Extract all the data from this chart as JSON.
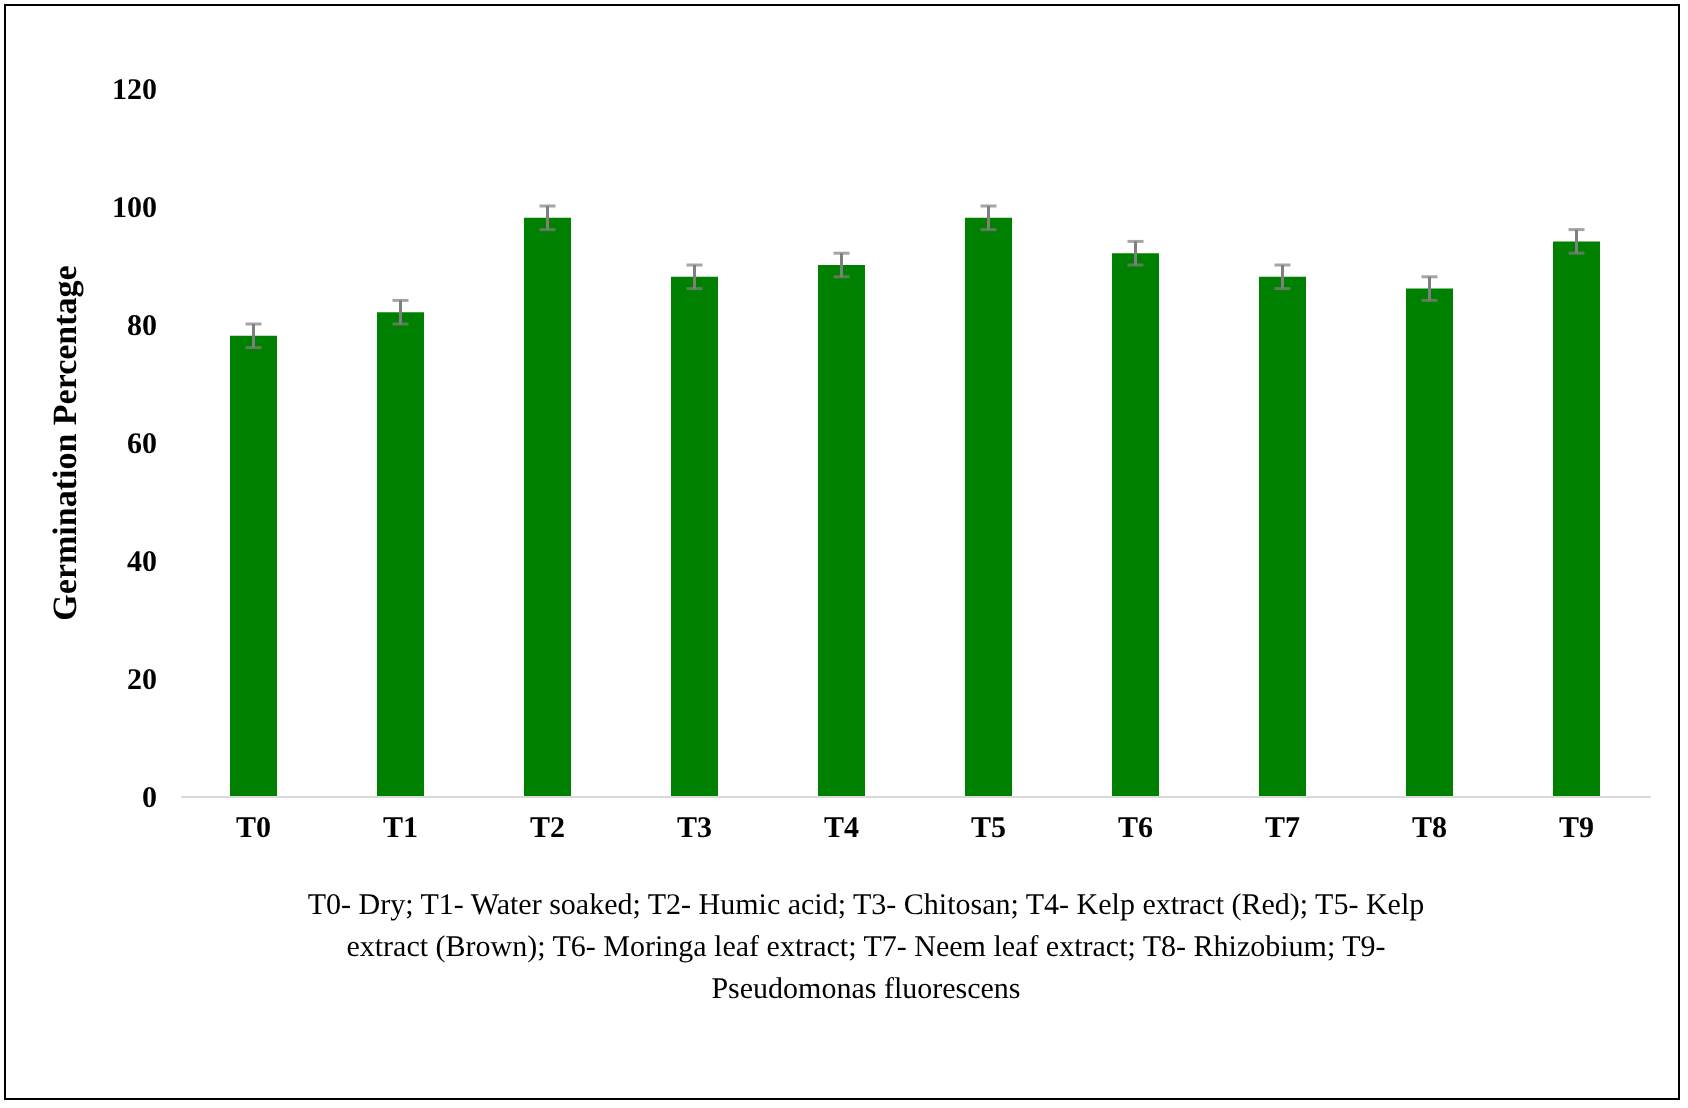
{
  "chart_data": {
    "type": "bar",
    "ylabel": "Germination Percentage",
    "categories": [
      "T0",
      "T1",
      "T2",
      "T3",
      "T4",
      "T5",
      "T6",
      "T7",
      "T8",
      "T9"
    ],
    "values": [
      78,
      82,
      98,
      88,
      90,
      98,
      92,
      88,
      86,
      94
    ],
    "errors": [
      2,
      2,
      2,
      2,
      2,
      2,
      2,
      2,
      2,
      2
    ],
    "color": "#008000",
    "ylim": [
      0,
      120
    ],
    "yticks": [
      0,
      20,
      40,
      60,
      80,
      100,
      120
    ],
    "grid": false,
    "annotations": [
      "T0- Dry; T1- Water soaked; T2- Humic acid; T3- Chitosan; T4- Kelp extract (Red); T5- Kelp extract (Brown); T6- Moringa leaf extract; T7- Neem leaf extract; T8- Rhizobium; T9- Pseudomonas fluorescens"
    ]
  }
}
